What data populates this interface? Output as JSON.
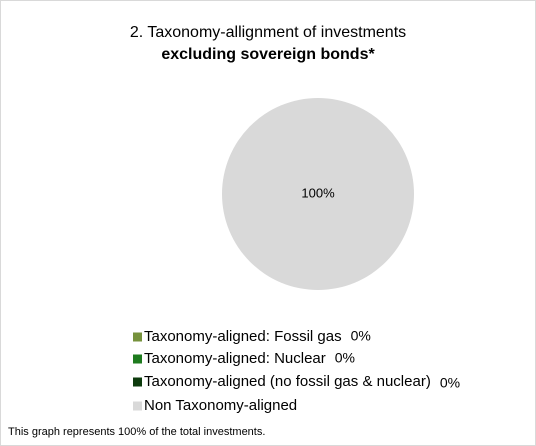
{
  "chart_data": {
    "type": "pie",
    "title": "2. Taxonomy-allignment of investments",
    "subtitle": "excluding sovereign bonds*",
    "categories": [
      "Taxonomy-aligned: Fossil gas",
      "Taxonomy-aligned: Nuclear",
      "Taxonomy-aligned (no fossil gas & nuclear)",
      "Non Taxonomy-aligned"
    ],
    "values": [
      0,
      0,
      0,
      100
    ],
    "value_labels": [
      "0%",
      "0%",
      "0%",
      "100%"
    ],
    "colors": [
      "#76923c",
      "#1e7b1e",
      "#0d3b0d",
      "#d9d9d9"
    ],
    "footnote": "This graph represents 100% of the total investments."
  }
}
